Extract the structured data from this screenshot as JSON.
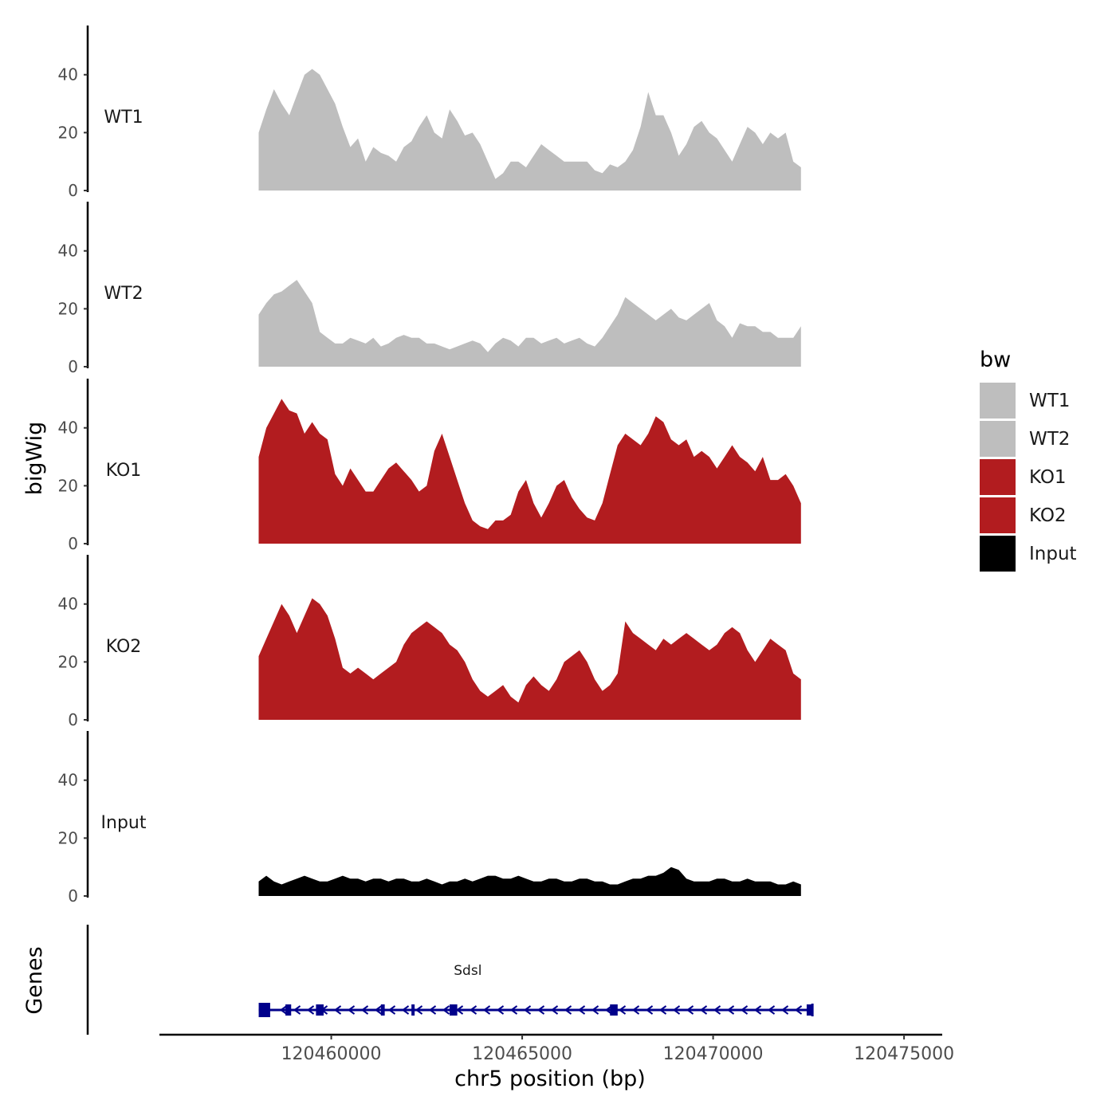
{
  "chart_data": {
    "type": "area",
    "chromosome": "chr5",
    "xlabel": "chr5 position (bp)",
    "ylabel": "bigWig",
    "gene_panel_label": "Genes",
    "xlim": [
      120455500,
      120476000
    ],
    "x_ticks": [
      120460000,
      120465000,
      120470000,
      120475000
    ],
    "ylim": [
      0,
      57
    ],
    "y_ticks": [
      0,
      20,
      40
    ],
    "legend": {
      "title": "bw",
      "position": "right",
      "entries": [
        {
          "label": "WT1",
          "color": "#bebebe"
        },
        {
          "label": "WT2",
          "color": "#bebebe"
        },
        {
          "label": "KO1",
          "color": "#b21c1f"
        },
        {
          "label": "KO2",
          "color": "#b21c1f"
        },
        {
          "label": "Input",
          "color": "#000000"
        }
      ]
    },
    "x_start": 120458100,
    "x_step": 200,
    "series": [
      {
        "name": "WT1",
        "color": "#bebebe",
        "values": [
          20,
          28,
          35,
          30,
          26,
          33,
          40,
          42,
          40,
          35,
          30,
          22,
          15,
          18,
          10,
          15,
          13,
          12,
          10,
          15,
          17,
          22,
          26,
          20,
          18,
          28,
          24,
          19,
          20,
          16,
          10,
          4,
          6,
          10,
          10,
          8,
          12,
          16,
          14,
          12,
          10,
          10,
          10,
          10,
          7,
          6,
          9,
          8,
          10,
          14,
          22,
          34,
          26,
          26,
          20,
          12,
          16,
          22,
          24,
          20,
          18,
          14,
          10,
          16,
          22,
          20,
          16,
          20,
          18,
          20,
          10,
          8
        ]
      },
      {
        "name": "WT2",
        "color": "#bebebe",
        "values": [
          18,
          22,
          25,
          26,
          28,
          30,
          26,
          22,
          12,
          10,
          8,
          8,
          10,
          9,
          8,
          10,
          7,
          8,
          10,
          11,
          10,
          10,
          8,
          8,
          7,
          6,
          7,
          8,
          9,
          8,
          5,
          8,
          10,
          9,
          7,
          10,
          10,
          8,
          9,
          10,
          8,
          9,
          10,
          8,
          7,
          10,
          14,
          18,
          24,
          22,
          20,
          18,
          16,
          18,
          20,
          17,
          16,
          18,
          20,
          22,
          16,
          14,
          10,
          15,
          14,
          14,
          12,
          12,
          10,
          10,
          10,
          14
        ]
      },
      {
        "name": "KO1",
        "color": "#b21c1f",
        "values": [
          30,
          40,
          45,
          50,
          46,
          45,
          38,
          42,
          38,
          36,
          24,
          20,
          26,
          22,
          18,
          18,
          22,
          26,
          28,
          25,
          22,
          18,
          20,
          32,
          38,
          30,
          22,
          14,
          8,
          6,
          5,
          8,
          8,
          10,
          18,
          22,
          14,
          9,
          14,
          20,
          22,
          16,
          12,
          9,
          8,
          14,
          24,
          34,
          38,
          36,
          34,
          38,
          44,
          42,
          36,
          34,
          36,
          30,
          32,
          30,
          26,
          30,
          34,
          30,
          28,
          25,
          30,
          22,
          22,
          24,
          20,
          14
        ]
      },
      {
        "name": "KO2",
        "color": "#b21c1f",
        "values": [
          22,
          28,
          34,
          40,
          36,
          30,
          36,
          42,
          40,
          36,
          28,
          18,
          16,
          18,
          16,
          14,
          16,
          18,
          20,
          26,
          30,
          32,
          34,
          32,
          30,
          26,
          24,
          20,
          14,
          10,
          8,
          10,
          12,
          8,
          6,
          12,
          15,
          12,
          10,
          14,
          20,
          22,
          24,
          20,
          14,
          10,
          12,
          16,
          34,
          30,
          28,
          26,
          24,
          28,
          26,
          28,
          30,
          28,
          26,
          24,
          26,
          30,
          32,
          30,
          24,
          20,
          24,
          28,
          26,
          24,
          16,
          14
        ]
      },
      {
        "name": "Input",
        "color": "#000000",
        "values": [
          5,
          7,
          5,
          4,
          5,
          6,
          7,
          6,
          5,
          5,
          6,
          7,
          6,
          6,
          5,
          6,
          6,
          5,
          6,
          6,
          5,
          5,
          6,
          5,
          4,
          5,
          5,
          6,
          5,
          6,
          7,
          7,
          6,
          6,
          7,
          6,
          5,
          5,
          6,
          6,
          5,
          5,
          6,
          6,
          5,
          5,
          4,
          4,
          5,
          6,
          6,
          7,
          7,
          8,
          10,
          9,
          6,
          5,
          5,
          5,
          6,
          6,
          5,
          5,
          6,
          5,
          5,
          5,
          4,
          4,
          5,
          4
        ]
      }
    ],
    "genes": [
      {
        "name": "Sdsl",
        "strand": "-",
        "start": 120458100,
        "end": 120472600,
        "exons": [
          [
            120458100,
            120458400
          ],
          [
            120458800,
            120458950
          ],
          [
            120459600,
            120459800
          ],
          [
            120461300,
            120461400
          ],
          [
            120462100,
            120462150
          ],
          [
            120463100,
            120463300
          ],
          [
            120467300,
            120467500
          ],
          [
            120472450,
            120472600
          ]
        ]
      }
    ]
  }
}
